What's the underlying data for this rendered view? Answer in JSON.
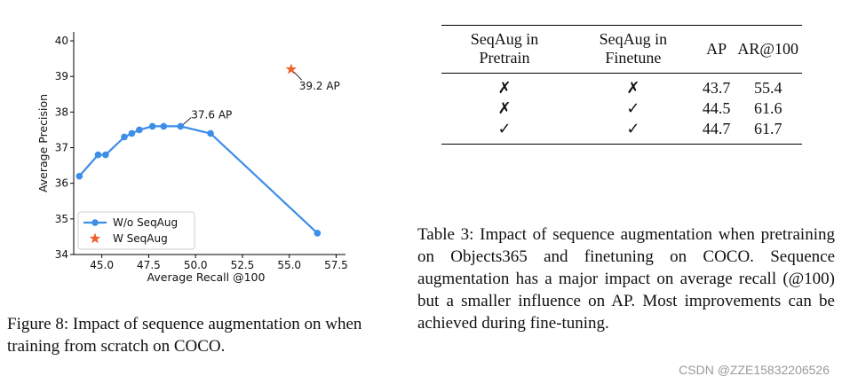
{
  "chart_data": {
    "type": "scatter",
    "xlabel": "Average Recall @100",
    "ylabel": "Average Precision",
    "xlim": [
      43.5,
      58.0
    ],
    "ylim": [
      34.0,
      40.25
    ],
    "xticks": [
      45.0,
      47.5,
      50.0,
      52.5,
      55.0,
      57.5
    ],
    "xtick_labels": [
      "45.0",
      "47.5",
      "50.0",
      "52.5",
      "55.0",
      "57.5"
    ],
    "yticks": [
      34,
      35,
      36,
      37,
      38,
      39,
      40
    ],
    "ytick_labels": [
      "34",
      "35",
      "36",
      "37",
      "38",
      "39",
      "40"
    ],
    "grid": false,
    "legend_position": "lower-left",
    "series": [
      {
        "name": "W/o SeqAug",
        "marker": "circle",
        "line": true,
        "color": "#3d8ee8",
        "points": [
          {
            "x": 43.8,
            "y": 36.2
          },
          {
            "x": 44.8,
            "y": 36.8
          },
          {
            "x": 45.2,
            "y": 36.8
          },
          {
            "x": 46.2,
            "y": 37.3
          },
          {
            "x": 46.6,
            "y": 37.4
          },
          {
            "x": 47.0,
            "y": 37.5
          },
          {
            "x": 47.7,
            "y": 37.6
          },
          {
            "x": 48.3,
            "y": 37.6
          },
          {
            "x": 49.2,
            "y": 37.6
          },
          {
            "x": 50.8,
            "y": 37.4
          },
          {
            "x": 56.5,
            "y": 34.6
          }
        ]
      },
      {
        "name": "W SeqAug",
        "marker": "star",
        "line": false,
        "color": "#f0622d",
        "points": [
          {
            "x": 55.1,
            "y": 39.2
          }
        ]
      }
    ],
    "annotations": [
      {
        "text": "37.6 AP",
        "x": 49.2,
        "y": 37.6
      },
      {
        "text": "39.2 AP",
        "x": 55.1,
        "y": 39.2
      }
    ]
  },
  "figure_caption": "Figure 8: Impact of sequence augmentation on when training from scratch on COCO.",
  "table": {
    "headers": [
      "SeqAug in Pretrain",
      "SeqAug in Finetune",
      "AP",
      "AR@100"
    ],
    "rows": [
      [
        "✗",
        "✗",
        "43.7",
        "55.4"
      ],
      [
        "✗",
        "✓",
        "44.5",
        "61.6"
      ],
      [
        "✓",
        "✓",
        "44.7",
        "61.7"
      ]
    ]
  },
  "table_caption": "Table 3: Impact of sequence augmentation when pretraining on Objects365 and finetuning on COCO. Sequence augmentation has a major impact on average recall (@100) but a smaller influence on AP. Most improvements can be achieved during fine-tuning.",
  "watermark": "CSDN @ZZE15832206526"
}
